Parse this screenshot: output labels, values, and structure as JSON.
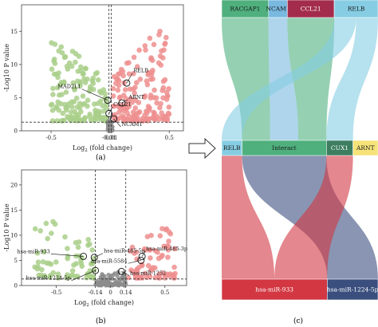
{
  "panel_labels": {
    "a": "(a)",
    "b": "(b)",
    "c": "(c)"
  },
  "chart_data": [
    {
      "type": "scatter",
      "id": "volcano-a",
      "xlabel": "Log",
      "xlabel_sub": "2",
      "xlabel_rest": " (fold change)",
      "ylabel": "-Log10 P value",
      "xlim": [
        -0.75,
        0.62
      ],
      "ylim": [
        0,
        19
      ],
      "x_ticks": [
        -0.5,
        -0.01,
        0.01,
        0.5
      ],
      "x_tick_labels": [
        "-0.5",
        "-0.01",
        "0.01",
        "0.5"
      ],
      "y_ticks": [
        0,
        5,
        10,
        15
      ],
      "y_tick_labels": [
        "0",
        "5",
        "10",
        "15"
      ],
      "thresholds": {
        "vlines": [
          -0.01,
          0.01
        ],
        "hline": 1.3
      },
      "colors": {
        "down": "#a9cf8a",
        "up": "#ee8f8f",
        "ns": "#8c8c8c"
      },
      "seed": 7,
      "point_groups": [
        {
          "name": "down",
          "count": 150,
          "x_range": [
            -0.5,
            -0.02
          ],
          "y_range": [
            1.5,
            13.5
          ]
        },
        {
          "name": "up",
          "count": 170,
          "x_range": [
            0.02,
            0.5
          ],
          "y_range": [
            1.5,
            15.5
          ]
        },
        {
          "name": "ns",
          "count": 70,
          "x_range": [
            -0.02,
            0.02
          ],
          "y_range": [
            0,
            3.5
          ]
        }
      ],
      "annotations": [
        {
          "label": "RELB",
          "x": 0.14,
          "y": 7.2,
          "dx": 0.05,
          "dy": 1.5
        },
        {
          "label": "ARNT",
          "x": 0.1,
          "y": 4.2,
          "dx": 0.05,
          "dy": 0.5
        },
        {
          "label": "MAD2L1",
          "x": -0.02,
          "y": 4.6,
          "dx": -0.22,
          "dy": 1.7
        },
        {
          "label": "CCL21",
          "x": -0.01,
          "y": 2.6,
          "dx": 0.03,
          "dy": 1.0
        },
        {
          "label": "NCAM1",
          "x": 0.03,
          "y": 1.8,
          "dx": 0.06,
          "dy": -1.2
        }
      ]
    },
    {
      "type": "scatter",
      "id": "volcano-b",
      "xlabel": "Log",
      "xlabel_sub": "2",
      "xlabel_rest": " (fold change)",
      "ylabel": "-Log10 P value",
      "xlim": [
        -0.82,
        0.7
      ],
      "ylim": [
        0,
        23
      ],
      "x_ticks": [
        -0.5,
        -0.14,
        0,
        0.14,
        0.5
      ],
      "x_tick_labels": [
        "-0.5",
        "-0.14",
        "0",
        "0.14",
        "0.5"
      ],
      "y_ticks": [
        0,
        5,
        10,
        15,
        20
      ],
      "y_tick_labels": [
        "0",
        "5",
        "10",
        "15",
        "20"
      ],
      "thresholds": {
        "vlines": [
          -0.14,
          0.14
        ],
        "hline": 1.3
      },
      "colors": {
        "down": "#a9cf8a",
        "up": "#ee8f8f",
        "ns": "#8c8c8c"
      },
      "seed": 13,
      "point_groups": [
        {
          "name": "down",
          "count": 70,
          "x_range": [
            -0.7,
            -0.15
          ],
          "y_range": [
            1.5,
            14
          ]
        },
        {
          "name": "up",
          "count": 75,
          "x_range": [
            0.15,
            0.6
          ],
          "y_range": [
            1.5,
            12
          ]
        },
        {
          "name": "ns",
          "count": 95,
          "x_range": [
            -0.14,
            0.14
          ],
          "y_range": [
            0,
            6
          ]
        }
      ],
      "annotations": [
        {
          "label": "hsa-miR-933",
          "x": -0.25,
          "y": 5.8,
          "dx": -0.3,
          "dy": 0.5
        },
        {
          "label": "hsa-miR-485-5p",
          "x": -0.15,
          "y": 5.6,
          "dx": 0.08,
          "dy": 0.8
        },
        {
          "label": "hsa-miR-485-3p",
          "x": 0.29,
          "y": 5.8,
          "dx": 0.03,
          "dy": 1.0
        },
        {
          "label": "hsa-miR-5584",
          "x": 0.28,
          "y": 5.0,
          "dx": -0.12,
          "dy": -0.6
        },
        {
          "label": "hsa-miR-1224-5p",
          "x": -0.14,
          "y": 3.0,
          "dx": -0.22,
          "dy": -2.0
        },
        {
          "label": "hsa-miR-1252",
          "x": 0.1,
          "y": 2.8,
          "dx": 0.07,
          "dy": -0.8
        }
      ]
    }
  ],
  "sankey": {
    "type": "sankey",
    "top_nodes": [
      {
        "label": "RACGAP1",
        "color": "#4fb07e",
        "weight": 0.3
      },
      {
        "label": "NCAM1",
        "color": "#79b9e0",
        "weight": 0.12
      },
      {
        "label": "CCL21",
        "color": "#a32c4c",
        "weight": 0.3
      },
      {
        "label": "RELB",
        "color": "#86cde3",
        "weight": 0.28
      }
    ],
    "mid_nodes": [
      {
        "label": "RELB",
        "color": "#86cde3",
        "weight": 0.13
      },
      {
        "label": "Interact",
        "color": "#4fb07e",
        "weight": 0.54
      },
      {
        "label": "CUX1",
        "color": "#3d7d60",
        "weight": 0.17
      },
      {
        "label": "ARNT",
        "color": "#f5e379",
        "weight": 0.16
      }
    ],
    "bottom_nodes": [
      {
        "label": "hsa-miR-933",
        "color": "#d23742",
        "weight": 0.675
      },
      {
        "label": "hsa-miR-1224-5p",
        "color": "#3a4f7e",
        "weight": 0.325
      }
    ],
    "top_links": [
      {
        "source": 0,
        "target": 1,
        "color": "#4fb07e"
      },
      {
        "source": 1,
        "target": 1,
        "color": "#79b9e0"
      },
      {
        "source": 2,
        "target": 1,
        "color": "#4fb07e"
      },
      {
        "source": 3,
        "target": 0,
        "color": "#86cde3"
      },
      {
        "source": 3,
        "target": 2,
        "color": "#86cde3"
      }
    ],
    "bottom_links": [
      {
        "source": 0,
        "target": 0,
        "color": "#d23742"
      },
      {
        "source": 1,
        "target": 1,
        "color": "#3a4f7e"
      },
      {
        "source": 2,
        "target": 0,
        "color": "#d23742"
      }
    ]
  }
}
